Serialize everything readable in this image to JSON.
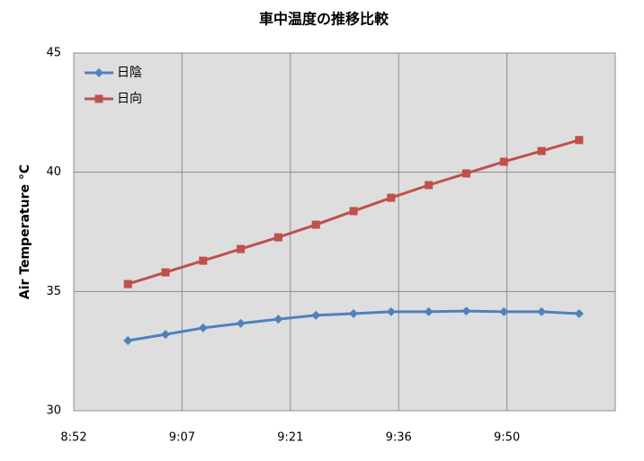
{
  "chart_data": {
    "type": "line",
    "title": "車中温度の推移比較",
    "y_label": "Air Temperature °C",
    "x": [
      "9:00",
      "9:05",
      "9:10",
      "9:15",
      "9:20",
      "9:25",
      "9:30",
      "9:35",
      "9:40",
      "9:45",
      "9:50",
      "9:55",
      "10:00"
    ],
    "series": [
      {
        "name": "日陰",
        "color": "#4f81bd",
        "marker": "diamond",
        "values": [
          32.94,
          33.2,
          33.47,
          33.66,
          33.84,
          34.0,
          34.07,
          34.15,
          34.15,
          34.18,
          34.15,
          34.15,
          34.07
        ]
      },
      {
        "name": "日向",
        "color": "#c0504d",
        "marker": "square",
        "values": [
          35.31,
          35.8,
          36.29,
          36.78,
          37.27,
          37.8,
          38.37,
          38.93,
          39.46,
          39.95,
          40.44,
          40.89,
          41.35
        ]
      }
    ],
    "xlim": [
      532.8,
      604.8
    ],
    "xticks": [
      {
        "value": 532.8,
        "label": "8:52"
      },
      {
        "value": 547.2,
        "label": "9:07"
      },
      {
        "value": 561.6,
        "label": "9:21"
      },
      {
        "value": 576,
        "label": "9:36"
      },
      {
        "value": 590.4,
        "label": "9:50"
      }
    ],
    "ylim": [
      30,
      45
    ],
    "yticks": [
      30,
      35,
      40,
      45
    ],
    "grid": true,
    "legend": "top-left"
  }
}
